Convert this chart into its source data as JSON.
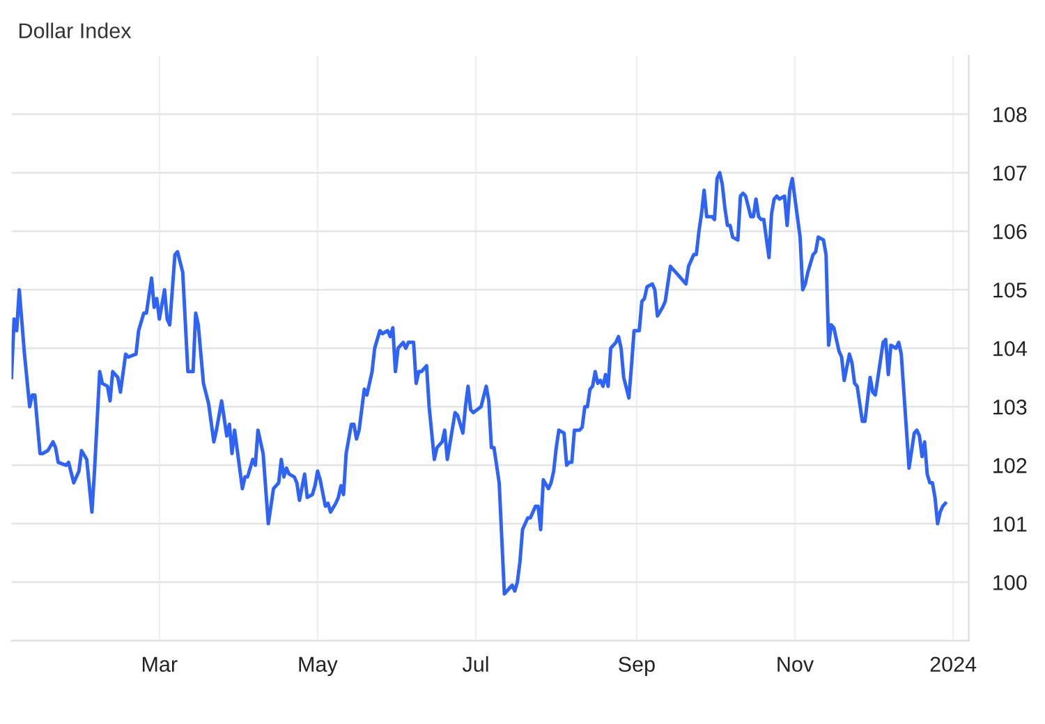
{
  "chart_data": {
    "type": "line",
    "title": "Dollar Index",
    "x": [
      "2023-01-03",
      "2023-01-04",
      "2023-01-05",
      "2023-01-06",
      "2023-01-08",
      "2023-01-10",
      "2023-01-11",
      "2023-01-12",
      "2023-01-14",
      "2023-01-15",
      "2023-01-17",
      "2023-01-19",
      "2023-01-20",
      "2023-01-21",
      "2023-01-24",
      "2023-01-25",
      "2023-01-27",
      "2023-01-29",
      "2023-01-30",
      "2023-02-01",
      "2023-02-03",
      "2023-02-04",
      "2023-02-06",
      "2023-02-07",
      "2023-02-09",
      "2023-02-10",
      "2023-02-11",
      "2023-02-13",
      "2023-02-14",
      "2023-02-16",
      "2023-02-17",
      "2023-02-20",
      "2023-02-21",
      "2023-02-23",
      "2023-02-24",
      "2023-02-26",
      "2023-02-27",
      "2023-02-28",
      "2023-03-01",
      "2023-03-03",
      "2023-03-04",
      "2023-03-05",
      "2023-03-07",
      "2023-03-08",
      "2023-03-10",
      "2023-03-12",
      "2023-03-14",
      "2023-03-15",
      "2023-03-16",
      "2023-03-18",
      "2023-03-20",
      "2023-03-22",
      "2023-03-23",
      "2023-03-25",
      "2023-03-26",
      "2023-03-27",
      "2023-03-28",
      "2023-03-29",
      "2023-03-30",
      "2023-04-02",
      "2023-04-03",
      "2023-04-04",
      "2023-04-06",
      "2023-04-07",
      "2023-04-08",
      "2023-04-10",
      "2023-04-12",
      "2023-04-14",
      "2023-04-16",
      "2023-04-17",
      "2023-04-18",
      "2023-04-19",
      "2023-04-20",
      "2023-04-22",
      "2023-04-23",
      "2023-04-24",
      "2023-04-26",
      "2023-04-27",
      "2023-04-29",
      "2023-04-30",
      "2023-05-01",
      "2023-05-02",
      "2023-05-04",
      "2023-05-05",
      "2023-05-06",
      "2023-05-08",
      "2023-05-09",
      "2023-05-10",
      "2023-05-11",
      "2023-05-12",
      "2023-05-14",
      "2023-05-15",
      "2023-05-16",
      "2023-05-17",
      "2023-05-19",
      "2023-05-20",
      "2023-05-22",
      "2023-05-23",
      "2023-05-25",
      "2023-05-26",
      "2023-05-28",
      "2023-05-29",
      "2023-05-30",
      "2023-05-31",
      "2023-06-01",
      "2023-06-03",
      "2023-06-04",
      "2023-06-05",
      "2023-06-07",
      "2023-06-08",
      "2023-06-09",
      "2023-06-10",
      "2023-06-12",
      "2023-06-13",
      "2023-06-15",
      "2023-06-16",
      "2023-06-18",
      "2023-06-19",
      "2023-06-20",
      "2023-06-23",
      "2023-06-24",
      "2023-06-26",
      "2023-06-27",
      "2023-06-28",
      "2023-06-29",
      "2023-06-30",
      "2023-07-03",
      "2023-07-05",
      "2023-07-06",
      "2023-07-07",
      "2023-07-08",
      "2023-07-09",
      "2023-07-10",
      "2023-07-12",
      "2023-07-14",
      "2023-07-15",
      "2023-07-16",
      "2023-07-17",
      "2023-07-18",
      "2023-07-19",
      "2023-07-21",
      "2023-07-22",
      "2023-07-24",
      "2023-07-25",
      "2023-07-26",
      "2023-07-27",
      "2023-07-29",
      "2023-07-30",
      "2023-07-31",
      "2023-08-01",
      "2023-08-02",
      "2023-08-04",
      "2023-08-05",
      "2023-08-06",
      "2023-08-07",
      "2023-08-08",
      "2023-08-10",
      "2023-08-11",
      "2023-08-12",
      "2023-08-13",
      "2023-08-14",
      "2023-08-15",
      "2023-08-16",
      "2023-08-17",
      "2023-08-18",
      "2023-08-19",
      "2023-08-20",
      "2023-08-21",
      "2023-08-22",
      "2023-08-24",
      "2023-08-25",
      "2023-08-26",
      "2023-08-27",
      "2023-08-29",
      "2023-08-30",
      "2023-08-31",
      "2023-09-02",
      "2023-09-03",
      "2023-09-04",
      "2023-09-05",
      "2023-09-07",
      "2023-09-08",
      "2023-09-09",
      "2023-09-11",
      "2023-09-12",
      "2023-09-14",
      "2023-09-17",
      "2023-09-20",
      "2023-09-21",
      "2023-09-23",
      "2023-09-24",
      "2023-09-25",
      "2023-09-26",
      "2023-09-27",
      "2023-09-28",
      "2023-09-30",
      "2023-10-01",
      "2023-10-02",
      "2023-10-03",
      "2023-10-04",
      "2023-10-05",
      "2023-10-06",
      "2023-10-07",
      "2023-10-08",
      "2023-10-10",
      "2023-10-11",
      "2023-10-12",
      "2023-10-13",
      "2023-10-15",
      "2023-10-16",
      "2023-10-17",
      "2023-10-18",
      "2023-10-19",
      "2023-10-20",
      "2023-10-22",
      "2023-10-23",
      "2023-10-24",
      "2023-10-25",
      "2023-10-26",
      "2023-10-28",
      "2023-10-29",
      "2023-10-30",
      "2023-10-31",
      "2023-11-03",
      "2023-11-04",
      "2023-11-05",
      "2023-11-06",
      "2023-11-08",
      "2023-11-09",
      "2023-11-10",
      "2023-11-12",
      "2023-11-13",
      "2023-11-14",
      "2023-11-15",
      "2023-11-16",
      "2023-11-18",
      "2023-11-19",
      "2023-11-20",
      "2023-11-22",
      "2023-11-23",
      "2023-11-24",
      "2023-11-25",
      "2023-11-27",
      "2023-11-28",
      "2023-11-30",
      "2023-12-01",
      "2023-12-02",
      "2023-12-04",
      "2023-12-05",
      "2023-12-06",
      "2023-12-07",
      "2023-12-08",
      "2023-12-10",
      "2023-12-11",
      "2023-12-12",
      "2023-12-15",
      "2023-12-17",
      "2023-12-18",
      "2023-12-19",
      "2023-12-20",
      "2023-12-21",
      "2023-12-22",
      "2023-12-23",
      "2023-12-24",
      "2023-12-25",
      "2023-12-26",
      "2023-12-27",
      "2023-12-28",
      "2023-12-29"
    ],
    "series": [
      {
        "color": "#2f63f6",
        "values": [
          103.5,
          104.5,
          104.3,
          105.0,
          103.9,
          103.0,
          103.2,
          103.2,
          102.2,
          102.2,
          102.25,
          102.4,
          102.3,
          102.05,
          102.0,
          102.05,
          101.7,
          101.9,
          102.25,
          102.1,
          101.2,
          101.9,
          103.6,
          103.4,
          103.35,
          103.1,
          103.6,
          103.5,
          103.25,
          103.9,
          103.85,
          103.9,
          104.3,
          104.6,
          104.6,
          105.2,
          104.7,
          104.85,
          104.5,
          105.0,
          104.5,
          104.4,
          105.6,
          105.65,
          105.3,
          103.6,
          103.6,
          104.6,
          104.4,
          103.4,
          103.05,
          102.4,
          102.6,
          103.1,
          102.8,
          102.5,
          102.7,
          102.2,
          102.6,
          101.6,
          101.8,
          101.8,
          102.1,
          102.0,
          102.6,
          102.2,
          101.0,
          101.6,
          101.7,
          102.1,
          101.8,
          101.95,
          101.85,
          101.8,
          101.7,
          101.4,
          101.85,
          101.45,
          101.5,
          101.65,
          101.9,
          101.75,
          101.3,
          101.35,
          101.2,
          101.35,
          101.45,
          101.65,
          101.5,
          102.2,
          102.7,
          102.7,
          102.45,
          102.6,
          103.3,
          103.2,
          103.6,
          104.0,
          104.3,
          104.25,
          104.3,
          104.2,
          104.35,
          103.6,
          104.0,
          104.1,
          104.0,
          104.1,
          104.1,
          103.4,
          103.6,
          103.6,
          103.7,
          103.0,
          102.1,
          102.3,
          102.4,
          102.6,
          102.1,
          102.9,
          102.85,
          102.55,
          103.0,
          103.35,
          102.95,
          102.9,
          103.0,
          103.35,
          103.1,
          102.3,
          102.3,
          102.0,
          101.7,
          99.8,
          99.9,
          99.95,
          99.85,
          100.0,
          100.35,
          100.9,
          101.1,
          101.1,
          101.3,
          101.3,
          100.9,
          101.75,
          101.6,
          101.7,
          101.9,
          102.3,
          102.6,
          102.55,
          102.0,
          102.05,
          102.05,
          102.6,
          102.6,
          102.65,
          103.0,
          103.0,
          103.3,
          103.35,
          103.6,
          103.4,
          103.45,
          103.35,
          103.55,
          103.35,
          104.0,
          104.1,
          104.2,
          104.0,
          103.5,
          103.15,
          103.7,
          104.3,
          104.3,
          104.8,
          104.85,
          105.05,
          105.1,
          105.0,
          104.55,
          104.7,
          104.8,
          105.4,
          105.25,
          105.1,
          105.4,
          105.6,
          105.6,
          106.0,
          106.3,
          106.7,
          106.25,
          106.25,
          106.2,
          106.9,
          107.0,
          106.8,
          106.4,
          106.1,
          106.1,
          105.9,
          105.85,
          106.6,
          106.65,
          106.6,
          106.25,
          106.25,
          106.55,
          106.25,
          106.2,
          106.2,
          105.55,
          106.3,
          106.55,
          106.6,
          106.55,
          106.6,
          106.1,
          106.7,
          106.9,
          105.9,
          105.0,
          105.1,
          105.3,
          105.6,
          105.65,
          105.9,
          105.85,
          105.6,
          104.05,
          104.4,
          104.35,
          103.95,
          103.85,
          103.45,
          103.9,
          103.75,
          103.4,
          103.35,
          102.75,
          102.75,
          103.5,
          103.25,
          103.2,
          103.8,
          104.1,
          104.15,
          103.55,
          104.05,
          104.0,
          104.1,
          103.9,
          101.95,
          102.55,
          102.6,
          102.5,
          102.15,
          102.4,
          101.85,
          101.7,
          101.7,
          101.45,
          101.0,
          101.2,
          101.3,
          101.35
        ]
      }
    ],
    "xlim": [
      "2023-01-03",
      "2024-01-07"
    ],
    "xticks": [
      {
        "value": "2023-03-01",
        "label": "Mar"
      },
      {
        "value": "2023-05-01",
        "label": "May"
      },
      {
        "value": "2023-07-01",
        "label": "Jul"
      },
      {
        "value": "2023-09-01",
        "label": "Sep"
      },
      {
        "value": "2023-11-01",
        "label": "Nov"
      },
      {
        "value": "2024-01-01",
        "label": "2024"
      }
    ],
    "ylim": [
      99,
      109
    ],
    "yticks": [
      100,
      101,
      102,
      103,
      104,
      105,
      106,
      107,
      108
    ],
    "grid": true,
    "marker": "none",
    "line_style": "solid"
  }
}
